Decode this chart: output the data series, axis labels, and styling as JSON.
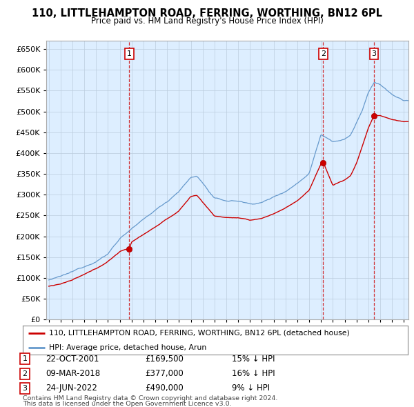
{
  "title": "110, LITTLEHAMPTON ROAD, FERRING, WORTHING, BN12 6PL",
  "subtitle": "Price paid vs. HM Land Registry's House Price Index (HPI)",
  "ylim": [
    0,
    670000
  ],
  "yticks": [
    0,
    50000,
    100000,
    150000,
    200000,
    250000,
    300000,
    350000,
    400000,
    450000,
    500000,
    550000,
    600000,
    650000
  ],
  "xlim_start": 1994.8,
  "xlim_end": 2025.4,
  "sale_dates": [
    2001.81,
    2018.19,
    2022.48
  ],
  "sale_prices": [
    169500,
    377000,
    490000
  ],
  "sale_labels": [
    "1",
    "2",
    "3"
  ],
  "legend_line1": "110, LITTLEHAMPTON ROAD, FERRING, WORTHING, BN12 6PL (detached house)",
  "legend_line2": "HPI: Average price, detached house, Arun",
  "table_rows": [
    {
      "label": "1",
      "date": "22-OCT-2001",
      "price": "£169,500",
      "pct": "15% ↓ HPI"
    },
    {
      "label": "2",
      "date": "09-MAR-2018",
      "price": "£377,000",
      "pct": "16% ↓ HPI"
    },
    {
      "label": "3",
      "date": "24-JUN-2022",
      "price": "£490,000",
      "pct": "9% ↓ HPI"
    }
  ],
  "footnote1": "Contains HM Land Registry data © Crown copyright and database right 2024.",
  "footnote2": "This data is licensed under the Open Government Licence v3.0.",
  "line_color_red": "#cc0000",
  "line_color_blue": "#6699cc",
  "chart_bg": "#ddeeff",
  "background_color": "#ffffff",
  "grid_color": "#bbccdd"
}
